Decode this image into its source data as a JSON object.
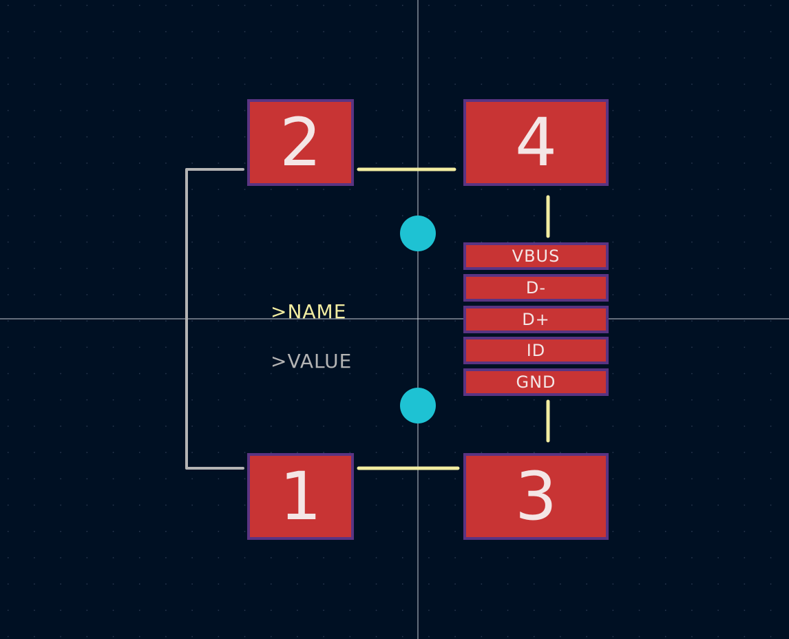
{
  "colors": {
    "background": "#001023",
    "grid_dot": "#2b3a52",
    "crosshair": "#c8ccd6",
    "pad_fill": "#c83434",
    "pad_border": "#5a3483",
    "pad_text": "#f4e6e6",
    "silkscreen_yellow": "#f2eda1",
    "fab_gray": "#b4b4b4",
    "hole_cyan": "#1ec2d3"
  },
  "pads": {
    "pad2": "2",
    "pad4": "4",
    "pad1": "1",
    "pad3": "3",
    "vbus": "VBUS",
    "dminus": "D-",
    "dplus": "D+",
    "id": "ID",
    "gnd": "GND"
  },
  "labels": {
    "name": ">NAME",
    "value": ">VALUE"
  }
}
